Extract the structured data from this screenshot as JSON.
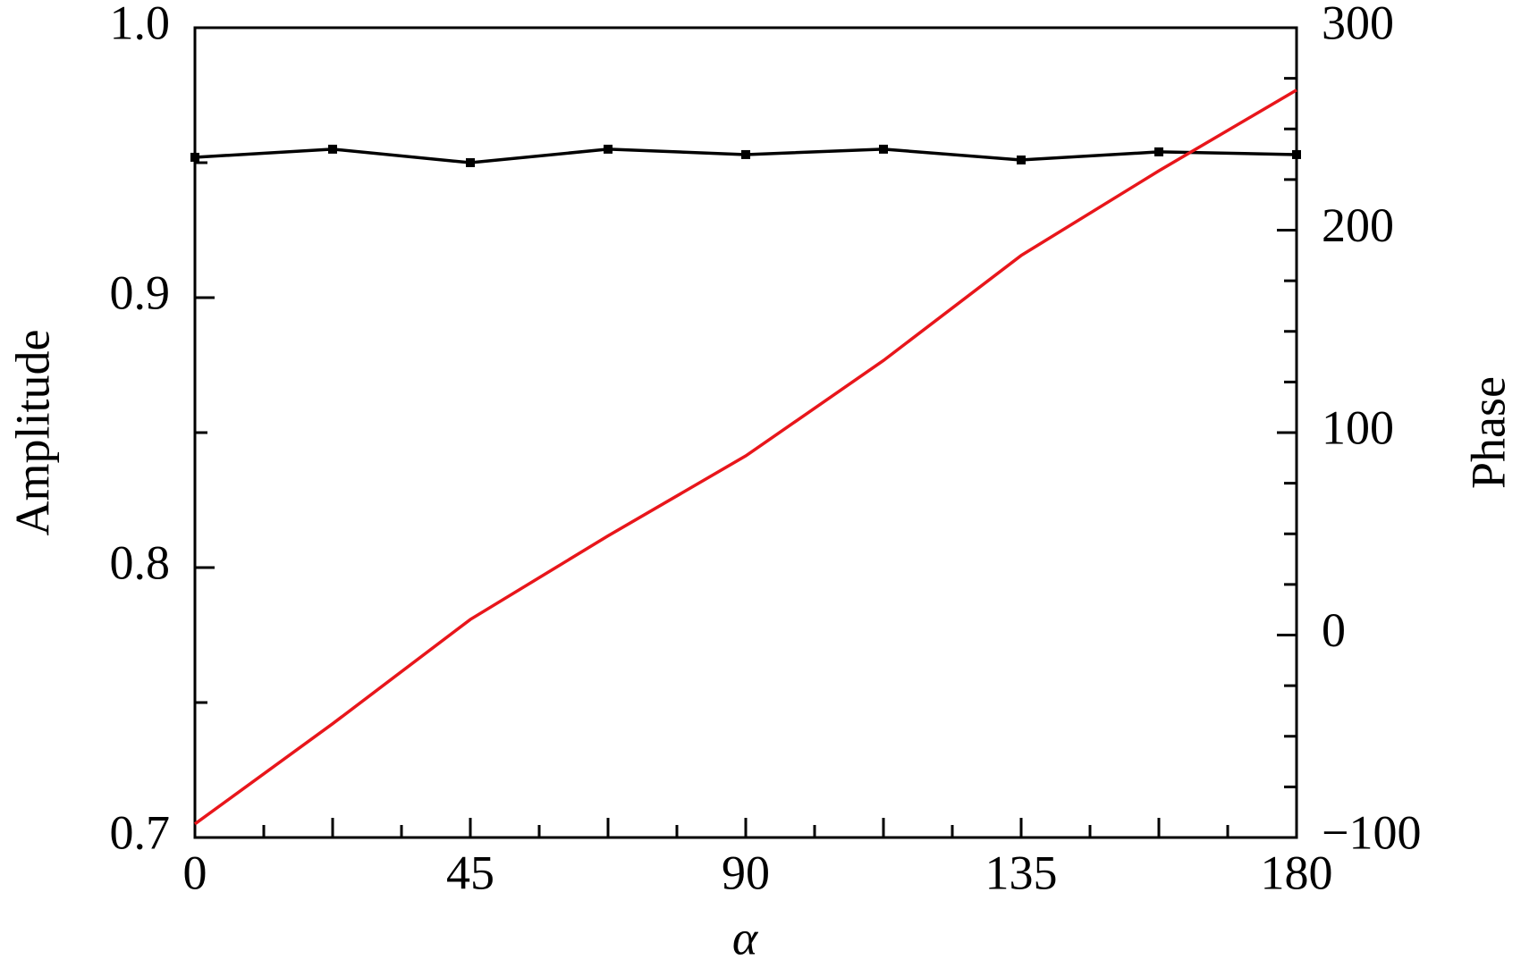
{
  "chart_data": {
    "type": "line",
    "x_label": "α",
    "y_label": "Amplitude",
    "y2_label": "Phase",
    "x": [
      0,
      22.5,
      45,
      67.5,
      90,
      112.5,
      135,
      157.5,
      180
    ],
    "series": [
      {
        "color": "#000000",
        "marker": "square",
        "axis": "y",
        "values": [
          0.952,
          0.955,
          0.95,
          0.955,
          0.953,
          0.955,
          0.951,
          0.954,
          0.953
        ]
      },
      {
        "color": "#e8161b",
        "axis": "y2",
        "values": [
          -93.3,
          -43.8,
          7.7,
          49,
          88.5,
          135.6,
          187.5,
          229.3,
          269.2
        ]
      }
    ],
    "xlim": [
      0,
      180
    ],
    "xticks": [
      0,
      45,
      90,
      135,
      180
    ],
    "ylim": [
      0.7,
      1.0
    ],
    "yticks": [
      0.7,
      0.8,
      0.9,
      {
        "value": 1,
        "label": "1.0"
      }
    ],
    "y2lim": [
      -100,
      300
    ],
    "y2ticks": [
      {
        "value": -100,
        "label": "−100"
      },
      0,
      100,
      200,
      300
    ]
  }
}
